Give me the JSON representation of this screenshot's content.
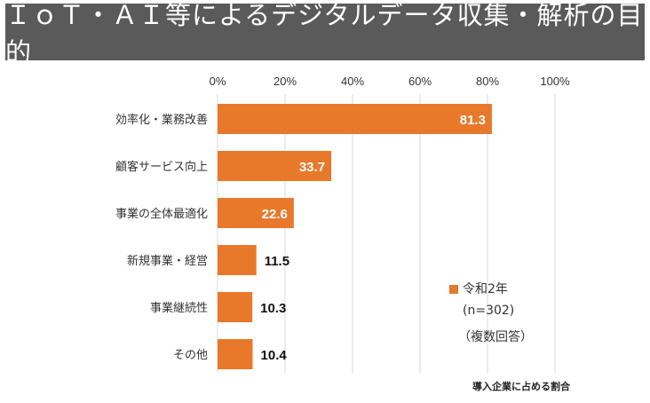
{
  "title": "ＩｏＴ・ＡＩ等によるデジタルデータ収集・解析の目的",
  "chart_data": {
    "type": "bar",
    "orientation": "horizontal",
    "categories": [
      "効率化・業務改善",
      "顧客サービス向上",
      "事業の全体最適化",
      "新規事業・経営",
      "事業継続性",
      "その他"
    ],
    "series": [
      {
        "name": "令和2年",
        "values": [
          81.3,
          33.7,
          22.6,
          11.5,
          10.3,
          10.4
        ]
      }
    ],
    "value_labels": [
      "81.3",
      "33.7",
      "22.6",
      "11.5",
      "10.3",
      "10.4"
    ],
    "xlim": [
      0,
      100
    ],
    "x_ticks": [
      0,
      20,
      40,
      60,
      80,
      100
    ],
    "x_tick_labels": [
      "0%",
      "20%",
      "40%",
      "60%",
      "80%",
      "100%"
    ],
    "x_axis_position": "top",
    "grid": true,
    "bar_color": "#E8792B",
    "grid_color": "#d9d9d9"
  },
  "legend": {
    "series_label": "令和2年",
    "sample": "(n=302)",
    "note": "（複数回答）"
  },
  "footnote": "導入企業に占める割合"
}
